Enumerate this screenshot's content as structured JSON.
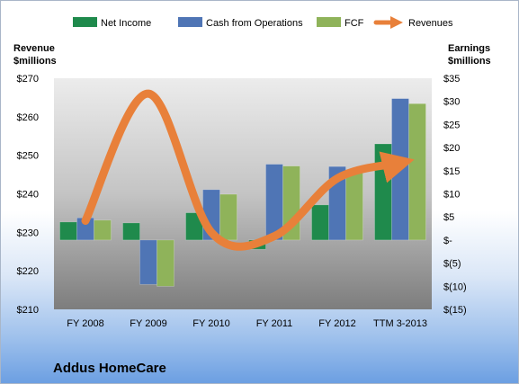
{
  "chart_data": {
    "type": "bar",
    "title": "",
    "company": "Addus HomeCare",
    "categories": [
      "FY 2008",
      "FY 2009",
      "FY 2010",
      "FY 2011",
      "FY 2012",
      "TTM 3-2013"
    ],
    "series": [
      {
        "name": "Net Income",
        "axis": "right",
        "color": "#1f8a4c",
        "values": [
          3.9,
          3.7,
          5.9,
          -2.0,
          7.6,
          20.8
        ]
      },
      {
        "name": "Cash from Operations",
        "axis": "right",
        "color": "#4f75b5",
        "values": [
          4.8,
          -9.6,
          10.9,
          16.4,
          15.9,
          30.6
        ]
      },
      {
        "name": "FCF",
        "axis": "right",
        "color": "#8fb35a",
        "values": [
          4.3,
          -10.0,
          9.9,
          16.0,
          14.6,
          29.5
        ]
      },
      {
        "name": "Revenues",
        "axis": "left",
        "type": "line",
        "color": "#e8803a",
        "values": [
          233,
          266,
          230,
          229,
          244,
          248
        ]
      }
    ],
    "left_axis": {
      "title_line1": "Revenue",
      "title_line2": "$millions",
      "min": 210,
      "max": 270,
      "step": 10,
      "tick_labels": [
        "$210",
        "$220",
        "$230",
        "$240",
        "$250",
        "$260",
        "$270"
      ]
    },
    "right_axis": {
      "title_line1": "Earnings",
      "title_line2": "$millions",
      "min": -15,
      "max": 35,
      "step": 5,
      "tick_labels": [
        "$(15)",
        "$(10)",
        "$(5)",
        "$-",
        "$5",
        "$10",
        "$15",
        "$20",
        "$25",
        "$30",
        "$35"
      ]
    },
    "legend": {
      "placement": "top",
      "entries": [
        "Net Income",
        "Cash from Operations",
        "FCF",
        "Revenues"
      ]
    },
    "grid": false
  }
}
